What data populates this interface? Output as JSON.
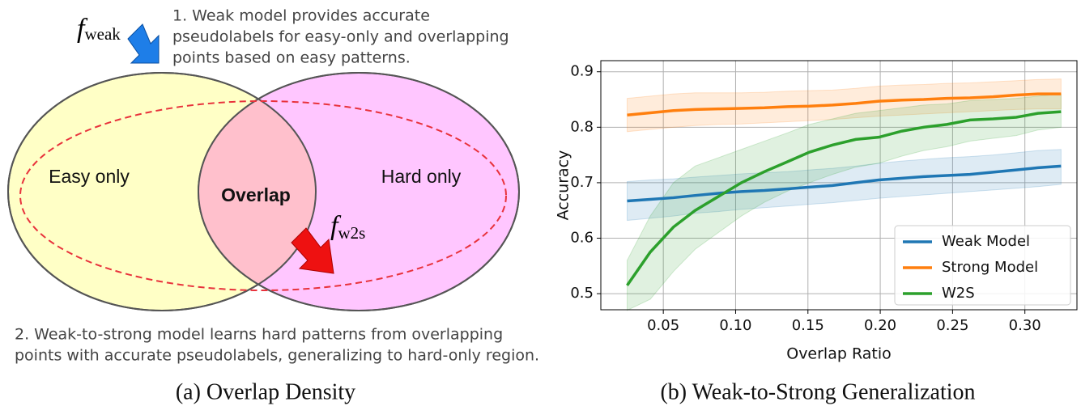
{
  "diagram": {
    "weak_label": {
      "symbol": "f",
      "subscript": "weak"
    },
    "w2s_label": {
      "symbol": "f",
      "subscript": "w2s"
    },
    "note_1": [
      "1. Weak model provides accurate",
      "pseudolabels for easy-only and overlapping",
      "points based on easy patterns."
    ],
    "note_2": [
      "2. Weak-to-strong model learns hard patterns from overlapping",
      "points with accurate pseudolabels, generalizing to hard-only region."
    ],
    "regions": [
      "Easy only",
      "Overlap",
      "Hard only"
    ],
    "caption": "(a) Overlap Density"
  },
  "chart_data": {
    "type": "line",
    "caption": "(b) Weak-to-Strong Generalization",
    "xlabel": "Overlap Ratio",
    "ylabel": "Accuracy",
    "x": [
      0.025,
      0.041,
      0.057,
      0.072,
      0.088,
      0.104,
      0.12,
      0.136,
      0.151,
      0.167,
      0.183,
      0.199,
      0.215,
      0.23,
      0.246,
      0.262,
      0.278,
      0.294,
      0.309,
      0.325
    ],
    "series": [
      {
        "name": "Weak Model",
        "color": "#1f77b4",
        "values": [
          0.667,
          0.67,
          0.673,
          0.677,
          0.681,
          0.684,
          0.686,
          0.689,
          0.692,
          0.695,
          0.7,
          0.705,
          0.708,
          0.711,
          0.713,
          0.715,
          0.719,
          0.723,
          0.727,
          0.73
        ],
        "lower": [
          0.632,
          0.636,
          0.64,
          0.645,
          0.648,
          0.652,
          0.655,
          0.658,
          0.661,
          0.664,
          0.668,
          0.672,
          0.675,
          0.678,
          0.681,
          0.684,
          0.687,
          0.69,
          0.693,
          0.697
        ],
        "upper": [
          0.702,
          0.705,
          0.707,
          0.71,
          0.713,
          0.716,
          0.718,
          0.72,
          0.723,
          0.726,
          0.73,
          0.735,
          0.739,
          0.742,
          0.745,
          0.747,
          0.75,
          0.754,
          0.758,
          0.76
        ]
      },
      {
        "name": "Strong Model",
        "color": "#ff7f0e",
        "values": [
          0.822,
          0.826,
          0.83,
          0.832,
          0.833,
          0.834,
          0.835,
          0.837,
          0.838,
          0.84,
          0.843,
          0.847,
          0.849,
          0.85,
          0.852,
          0.853,
          0.855,
          0.858,
          0.86,
          0.86
        ],
        "lower": [
          0.792,
          0.796,
          0.8,
          0.803,
          0.805,
          0.806,
          0.808,
          0.81,
          0.812,
          0.814,
          0.817,
          0.82,
          0.822,
          0.824,
          0.826,
          0.828,
          0.83,
          0.832,
          0.833,
          0.833
        ],
        "upper": [
          0.852,
          0.856,
          0.86,
          0.862,
          0.862,
          0.862,
          0.863,
          0.865,
          0.866,
          0.867,
          0.87,
          0.874,
          0.876,
          0.877,
          0.879,
          0.88,
          0.882,
          0.884,
          0.886,
          0.887
        ]
      },
      {
        "name": "W2S",
        "color": "#2ca02c",
        "values": [
          0.515,
          0.575,
          0.62,
          0.65,
          0.675,
          0.7,
          0.72,
          0.738,
          0.755,
          0.768,
          0.778,
          0.782,
          0.793,
          0.8,
          0.805,
          0.813,
          0.815,
          0.818,
          0.825,
          0.828
        ],
        "lower": [
          0.47,
          0.49,
          0.54,
          0.58,
          0.61,
          0.64,
          0.665,
          0.685,
          0.7,
          0.715,
          0.728,
          0.735,
          0.748,
          0.758,
          0.765,
          0.775,
          0.78,
          0.785,
          0.795,
          0.8
        ],
        "upper": [
          0.56,
          0.64,
          0.7,
          0.73,
          0.745,
          0.76,
          0.775,
          0.79,
          0.805,
          0.815,
          0.825,
          0.83,
          0.835,
          0.84,
          0.842,
          0.848,
          0.85,
          0.852,
          0.856,
          0.86
        ]
      }
    ],
    "xlim": [
      0.0068,
      0.336
    ],
    "ylim": [
      0.471,
      0.92
    ],
    "xticks": [
      0.05,
      {
        "value": 0.1,
        "label": "0.10"
      },
      0.15,
      {
        "value": 0.2,
        "label": "0.20"
      },
      0.25,
      {
        "value": 0.3,
        "label": "0.30"
      }
    ],
    "yticks": [
      0.5,
      0.6,
      0.7,
      0.8,
      0.9
    ],
    "grid": true,
    "legend": "lower right"
  }
}
